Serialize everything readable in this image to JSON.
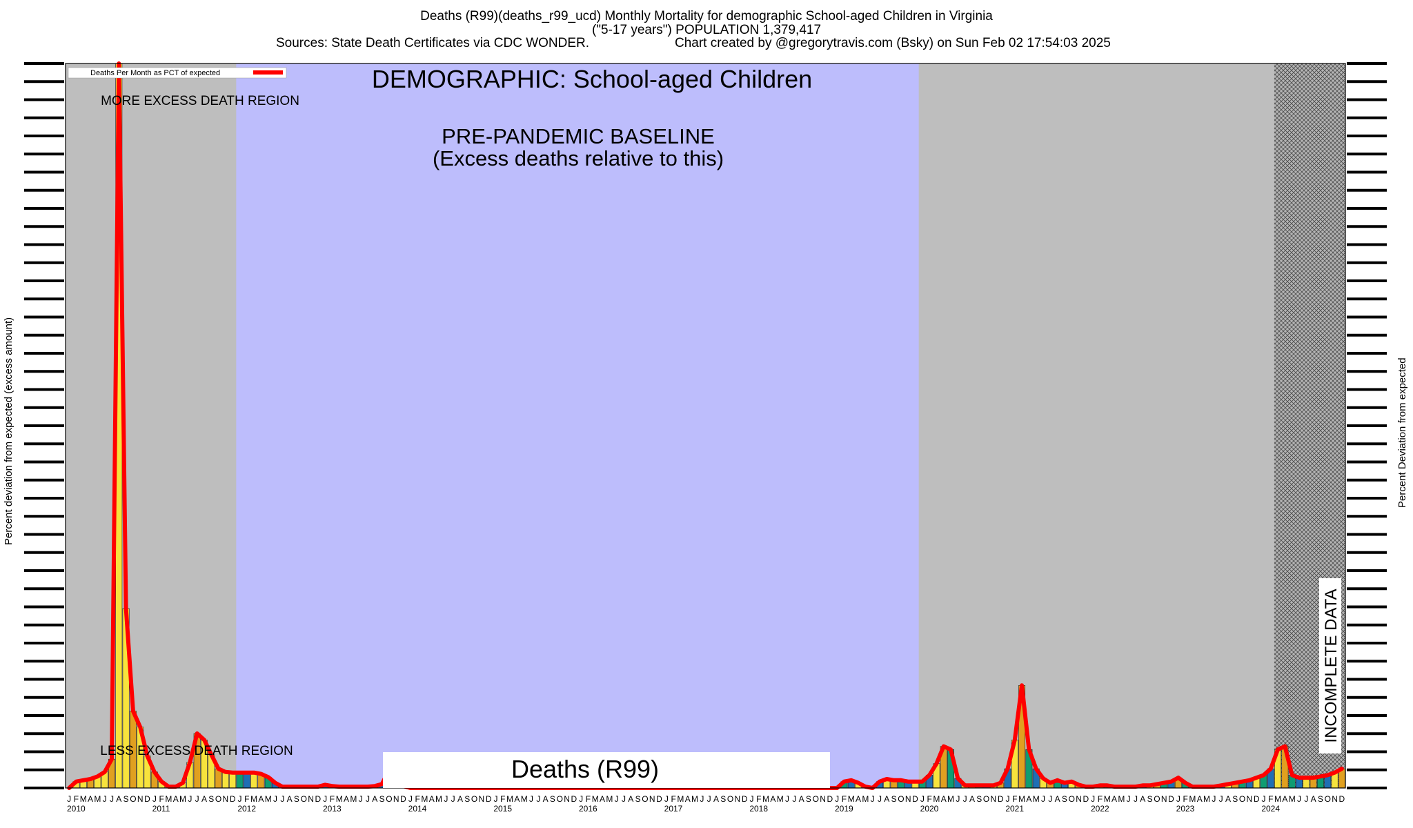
{
  "header": {
    "title": "Deaths (R99)(deaths_r99_ucd) Monthly Mortality for demographic School-aged Children in Virginia",
    "subtitle": "(\"5-17 years\") POPULATION 1,379,417",
    "sources": "Sources: State Death Certificates via CDC WONDER.",
    "credit": "Chart created by @gregorytravis.com (Bsky) on Sun Feb 02 17:54:03 2025"
  },
  "axes": {
    "ylabel_left": "Percent deviation from expected (excess amount)",
    "ylabel_right": "Percent Deviation from expected"
  },
  "colors": {
    "baseline_bg": "#bdbdfc",
    "other_bg": "#bebebe",
    "line": "#ff0000",
    "bar_yellow": "#f7e33d",
    "bar_orange": "#e0a020",
    "bar_green": "#0f9c72",
    "bar_blue": "#1f6fb4",
    "bar_red": "#d94b3c"
  },
  "chart_data": {
    "type": "line",
    "title": "DEMOGRAPHIC: School-aged Children",
    "series_label": "Deaths (R99)",
    "xlabel": "",
    "ylabel": "Percent deviation from expected (excess amount)",
    "legend": {
      "label": "Deaths Per Month as PCT of expected",
      "placement": "top-left"
    },
    "annotations": {
      "more_excess": "MORE EXCESS DEATH REGION",
      "less_excess": "LESS EXCESS DEATH REGION",
      "baseline_line1": "PRE-PANDEMIC BASELINE",
      "baseline_line2": "(Excess deaths relative to this)",
      "incomplete": "INCOMPLETE DATA"
    },
    "baseline_period": {
      "start": "2012-01",
      "end": "2019-12"
    },
    "incomplete_period": {
      "start": "2024-03",
      "end": "2024-12"
    },
    "month_letters": [
      "J",
      "F",
      "M",
      "A",
      "M",
      "J",
      "J",
      "A",
      "S",
      "O",
      "N",
      "D"
    ],
    "years": [
      "2010",
      "2011",
      "2012",
      "2013",
      "2014",
      "2015",
      "2016",
      "2017",
      "2018",
      "2019",
      "2020",
      "2021",
      "2022",
      "2023",
      "2024"
    ],
    "ylim": [
      -100,
      1030
    ],
    "series": [
      {
        "name": "Deaths Per Month as PCT of expected",
        "start": "2010-01",
        "values": [
          -100,
          -90,
          -88,
          -86,
          -82,
          -75,
          -55,
          1030,
          180,
          20,
          -5,
          -50,
          -75,
          -90,
          -98,
          -98,
          -92,
          -60,
          -15,
          -25,
          -48,
          -70,
          -75,
          -76,
          -76,
          -76,
          -76,
          -78,
          -83,
          -92,
          -98,
          -98,
          -98,
          -98,
          -98,
          -98,
          -95,
          -97,
          -98,
          -98,
          -98,
          -98,
          -98,
          -97,
          -94,
          -72,
          -70,
          -97,
          -100,
          -100,
          -100,
          -100,
          -100,
          -100,
          -100,
          -100,
          -100,
          -100,
          -100,
          -100,
          -100,
          -100,
          -100,
          -100,
          -100,
          -100,
          -100,
          -100,
          -100,
          -100,
          -100,
          -100,
          -100,
          -100,
          -100,
          -100,
          -100,
          -100,
          -100,
          -100,
          -100,
          -100,
          -100,
          -100,
          -100,
          -100,
          -100,
          -100,
          -100,
          -100,
          -100,
          -100,
          -100,
          -100,
          -100,
          -100,
          -100,
          -100,
          -100,
          -100,
          -100,
          -100,
          -100,
          -100,
          -100,
          -100,
          -100,
          -100,
          -100,
          -90,
          -88,
          -92,
          -98,
          -100,
          -90,
          -86,
          -88,
          -88,
          -90,
          -90,
          -90,
          -80,
          -62,
          -35,
          -40,
          -85,
          -96,
          -96,
          -96,
          -96,
          -96,
          -92,
          -70,
          -25,
          60,
          -40,
          -70,
          -85,
          -92,
          -88,
          -92,
          -90,
          -95,
          -98,
          -98,
          -96,
          -96,
          -98,
          -98,
          -98,
          -98,
          -96,
          -96,
          -94,
          -92,
          -90,
          -84,
          -92,
          -98,
          -98,
          -98,
          -98,
          -96,
          -94,
          -92,
          -90,
          -88,
          -84,
          -80,
          -70,
          -40,
          -35,
          -80,
          -84,
          -84,
          -84,
          -82,
          -80,
          -76,
          -70
        ]
      }
    ]
  },
  "bottom_label": "Deaths (R99)"
}
